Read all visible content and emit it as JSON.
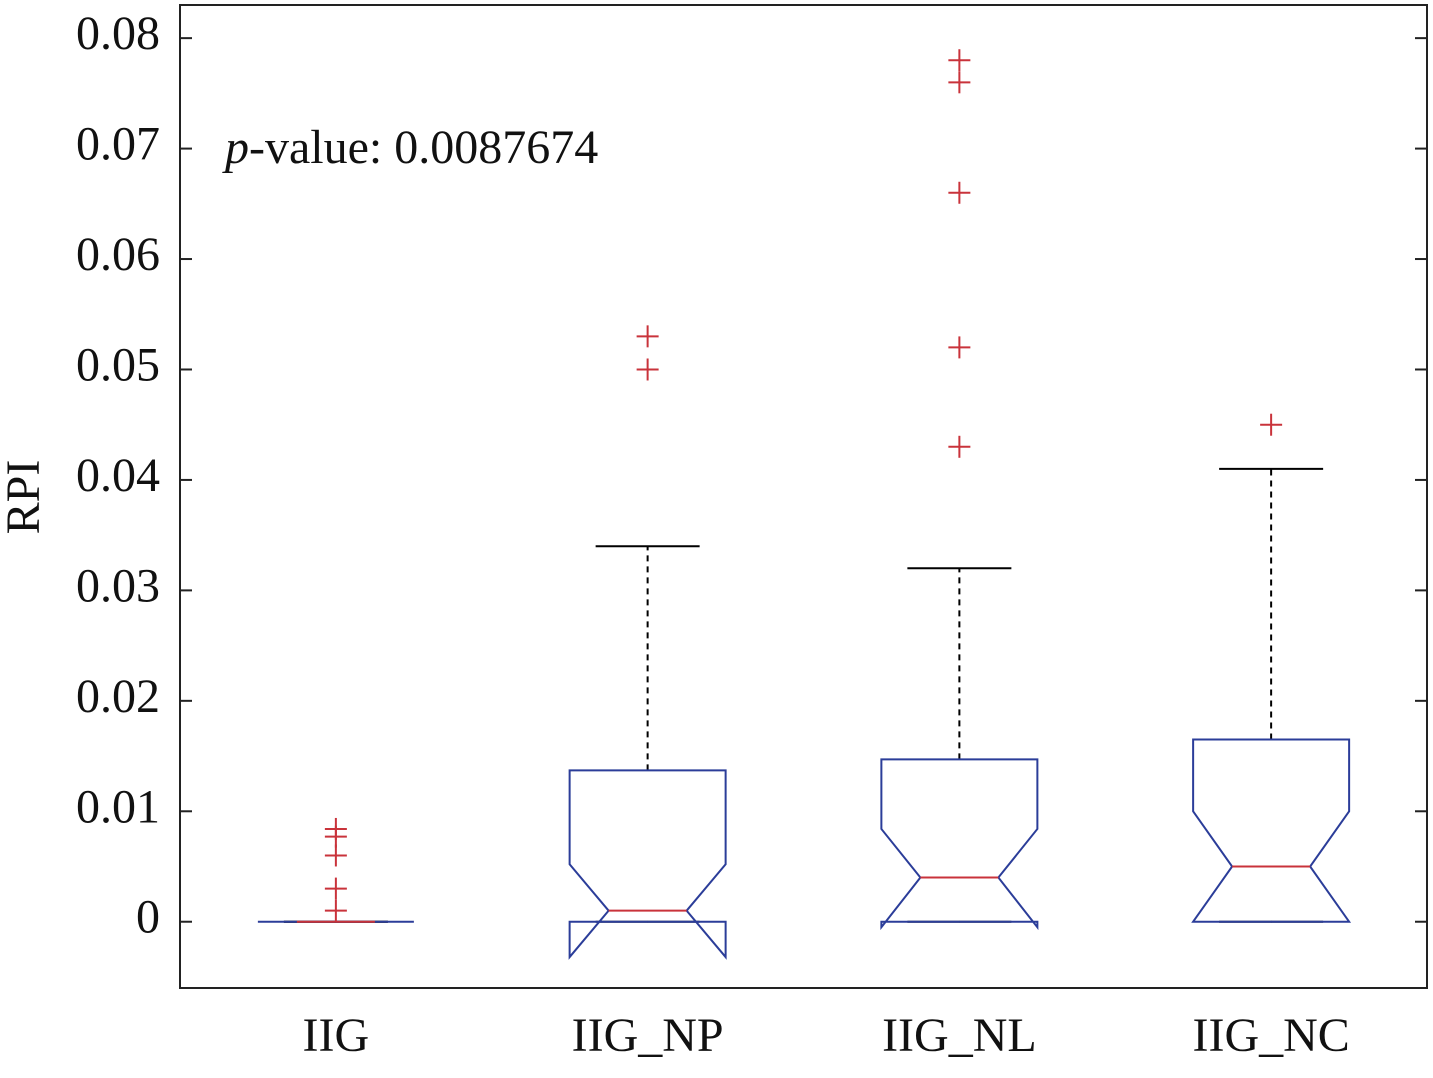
{
  "chart_data": {
    "type": "box",
    "ylabel": "RPI",
    "annotation": {
      "italic": "p",
      "text": "-value: 0.0087674"
    },
    "categories": [
      "IIG",
      "IIG_NP",
      "IIG_NL",
      "IIG_NC"
    ],
    "boxes": [
      {
        "whisker_low": 0,
        "q1": 0,
        "median": 0,
        "q3": 0,
        "whisker_high": 0,
        "notch_low": 0,
        "notch_high": 0,
        "outliers": [
          0.0084,
          0.0077,
          0.006,
          0.003,
          0.001
        ]
      },
      {
        "whisker_low": 0,
        "q1": 0,
        "median": 0.001,
        "q3": 0.0137,
        "whisker_high": 0.034,
        "notch_low": -0.0032,
        "notch_high": 0.0052,
        "outliers": [
          0.053,
          0.05
        ]
      },
      {
        "whisker_low": 0,
        "q1": 0,
        "median": 0.004,
        "q3": 0.0147,
        "whisker_high": 0.032,
        "notch_low": -0.0005,
        "notch_high": 0.0084,
        "outliers": [
          0.078,
          0.076,
          0.066,
          0.052,
          0.043
        ]
      },
      {
        "whisker_low": 0,
        "q1": 0,
        "median": 0.005,
        "q3": 0.0165,
        "whisker_high": 0.041,
        "notch_low": 0,
        "notch_high": 0.01,
        "outliers": [
          0.045
        ]
      }
    ],
    "box_color": "#2b3d99",
    "median_color": "#c9333b",
    "outlier_color": "#c9333b",
    "whisker_color": "#000000",
    "ylim": [
      -0.006,
      0.083
    ],
    "yticks": [
      0,
      0.01,
      0.02,
      0.03,
      0.04,
      0.05,
      0.06,
      0.07,
      0.08
    ]
  }
}
